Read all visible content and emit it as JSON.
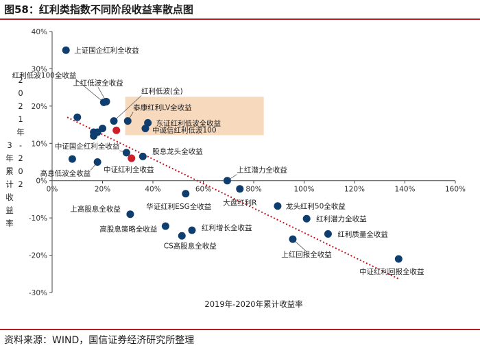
{
  "figure": {
    "title": "图58：红利类指数不同阶段收益率散点图",
    "source": "资料来源：WIND，国信证券经济研究所整理"
  },
  "chart_data": {
    "type": "scatter",
    "title": "",
    "xlabel": "2019年-2020年累计收益率",
    "ylabel": "2021年-2023年累计收益率",
    "xlim": [
      0,
      1.6
    ],
    "ylim": [
      -0.3,
      0.4
    ],
    "x_ticks": [
      "0%",
      "20%",
      "40%",
      "60%",
      "80%",
      "100%",
      "120%",
      "140%",
      "160%"
    ],
    "y_ticks": [
      "-30%",
      "-20%",
      "-10%",
      "0%",
      "10%",
      "20%",
      "30%",
      "40%"
    ],
    "grid": false,
    "legend": "none",
    "colors": {
      "primary": "#0f3e6e",
      "highlight": "#cc1f2a",
      "trend": "#c0141e",
      "box": "#f6d2b3"
    },
    "trendline": {
      "x": [
        0.06,
        1.38
      ],
      "y": [
        0.17,
        -0.265
      ]
    },
    "highlight_box": {
      "x0": 0.29,
      "x1": 0.84,
      "y0": 0.122,
      "y1": 0.225
    },
    "points": [
      {
        "x": 0.055,
        "y": 0.35,
        "label": "上证国企红利全收益",
        "color": "primary"
      },
      {
        "x": 0.1,
        "y": 0.17,
        "label": "",
        "color": "primary"
      },
      {
        "x": 0.165,
        "y": 0.13,
        "label": "",
        "color": "primary"
      },
      {
        "x": 0.165,
        "y": 0.12,
        "label": "",
        "color": "primary"
      },
      {
        "x": 0.18,
        "y": 0.13,
        "label": "",
        "color": "primary"
      },
      {
        "x": 0.2,
        "y": 0.14,
        "label": "",
        "color": "primary"
      },
      {
        "x": 0.205,
        "y": 0.21,
        "label": "红利低波100全收益",
        "color": "primary"
      },
      {
        "x": 0.215,
        "y": 0.212,
        "label": "上红低波全收益",
        "color": "primary"
      },
      {
        "x": 0.245,
        "y": 0.16,
        "label": "红利低波(全)",
        "color": "primary"
      },
      {
        "x": 0.255,
        "y": 0.135,
        "label": "",
        "color": "highlight"
      },
      {
        "x": 0.3,
        "y": 0.16,
        "label": "泰康红利LV全收益",
        "color": "primary"
      },
      {
        "x": 0.38,
        "y": 0.155,
        "label": "东证红利低波全收益",
        "color": "primary"
      },
      {
        "x": 0.37,
        "y": 0.14,
        "label": "中诚信红利低波100",
        "color": "primary"
      },
      {
        "x": 0.295,
        "y": 0.075,
        "label": "中证国企红利全收益",
        "color": "primary"
      },
      {
        "x": 0.315,
        "y": 0.06,
        "label": "中证红利全收益",
        "color": "highlight"
      },
      {
        "x": 0.36,
        "y": 0.065,
        "label": "股息龙头全收益",
        "color": "primary"
      },
      {
        "x": 0.08,
        "y": 0.058,
        "label": "",
        "color": "primary"
      },
      {
        "x": 0.18,
        "y": 0.05,
        "label": "高息低波全收益",
        "color": "primary"
      },
      {
        "x": 0.31,
        "y": -0.09,
        "label": "上高股息全收益",
        "color": "primary"
      },
      {
        "x": 0.53,
        "y": -0.035,
        "label": "华证红利ESG全收益",
        "color": "primary"
      },
      {
        "x": 0.45,
        "y": -0.122,
        "label": "高股息策略全收益",
        "color": "primary"
      },
      {
        "x": 0.515,
        "y": -0.148,
        "label": "CS高股息全收益",
        "color": "primary"
      },
      {
        "x": 0.555,
        "y": -0.133,
        "label": "红利增长全收益",
        "color": "primary"
      },
      {
        "x": 0.695,
        "y": 0.0,
        "label": "上红潜力全收益",
        "color": "primary"
      },
      {
        "x": 0.745,
        "y": -0.022,
        "label": "大盘红利R",
        "color": "primary"
      },
      {
        "x": 0.895,
        "y": -0.068,
        "label": "龙头红利50全收益",
        "color": "primary"
      },
      {
        "x": 1.01,
        "y": -0.102,
        "label": "红利潜力全收益",
        "color": "primary"
      },
      {
        "x": 1.095,
        "y": -0.143,
        "label": "红利质量全收益",
        "color": "primary"
      },
      {
        "x": 0.955,
        "y": -0.157,
        "label": "上红回报全收益",
        "color": "primary"
      },
      {
        "x": 1.375,
        "y": -0.21,
        "label": "中证红利回报全收益",
        "color": "primary"
      }
    ]
  }
}
